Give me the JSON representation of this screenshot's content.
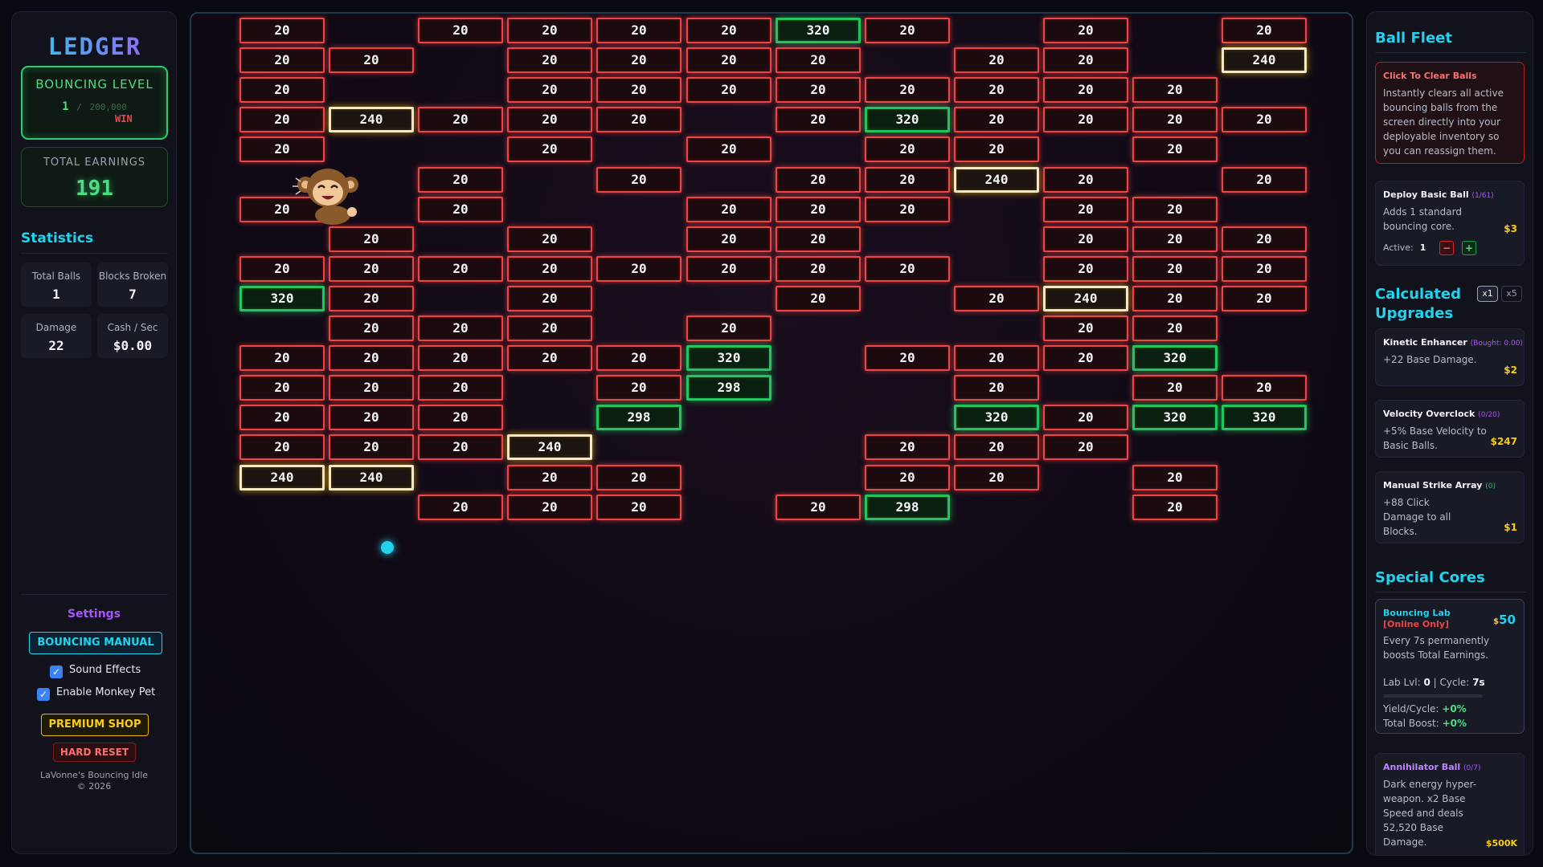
{
  "left": {
    "logo": "LEDGER",
    "level": {
      "title": "BOUNCING LEVEL",
      "current": "1",
      "sep": "/",
      "max": "200,000",
      "win": "WIN"
    },
    "earnings": {
      "title": "TOTAL EARNINGS",
      "value": "191"
    },
    "statistics": {
      "title": "Statistics",
      "total_balls_label": "Total Balls",
      "total_balls": "1",
      "blocks_broken_label": "Blocks Broken",
      "blocks_broken": "7",
      "damage_label": "Damage",
      "damage": "22",
      "cash_label": "Cash / Sec",
      "cash": "$0.00"
    },
    "settings": {
      "title": "Settings",
      "manual_label": "BOUNCING MANUAL",
      "sound_label": "Sound Effects",
      "sound_checked": true,
      "pet_label": "Enable Monkey Pet",
      "pet_checked": true,
      "premium_label": "PREMIUM SHOP",
      "reset_label": "HARD RESET",
      "credit_line1": "LaVonne's Bouncing Idle",
      "credit_line2": "© 2026"
    }
  },
  "board": {
    "bricks": [
      {
        "r": 0,
        "c": 0,
        "v": "20",
        "t": "red"
      },
      {
        "r": 0,
        "c": 2,
        "v": "20",
        "t": "red"
      },
      {
        "r": 0,
        "c": 3,
        "v": "20",
        "t": "red"
      },
      {
        "r": 0,
        "c": 4,
        "v": "20",
        "t": "red"
      },
      {
        "r": 0,
        "c": 5,
        "v": "20",
        "t": "red"
      },
      {
        "r": 0,
        "c": 6,
        "v": "320",
        "t": "green"
      },
      {
        "r": 0,
        "c": 7,
        "v": "20",
        "t": "red"
      },
      {
        "r": 0,
        "c": 9,
        "v": "20",
        "t": "red"
      },
      {
        "r": 0,
        "c": 11,
        "v": "20",
        "t": "red"
      },
      {
        "r": 1,
        "c": 0,
        "v": "20",
        "t": "red"
      },
      {
        "r": 1,
        "c": 1,
        "v": "20",
        "t": "red"
      },
      {
        "r": 1,
        "c": 3,
        "v": "20",
        "t": "red"
      },
      {
        "r": 1,
        "c": 4,
        "v": "20",
        "t": "red"
      },
      {
        "r": 1,
        "c": 5,
        "v": "20",
        "t": "red"
      },
      {
        "r": 1,
        "c": 6,
        "v": "20",
        "t": "red"
      },
      {
        "r": 1,
        "c": 8,
        "v": "20",
        "t": "red"
      },
      {
        "r": 1,
        "c": 9,
        "v": "20",
        "t": "red"
      },
      {
        "r": 1,
        "c": 11,
        "v": "240",
        "t": "gold"
      },
      {
        "r": 2,
        "c": 0,
        "v": "20",
        "t": "red"
      },
      {
        "r": 2,
        "c": 3,
        "v": "20",
        "t": "red"
      },
      {
        "r": 2,
        "c": 4,
        "v": "20",
        "t": "red"
      },
      {
        "r": 2,
        "c": 5,
        "v": "20",
        "t": "red"
      },
      {
        "r": 2,
        "c": 6,
        "v": "20",
        "t": "red"
      },
      {
        "r": 2,
        "c": 7,
        "v": "20",
        "t": "red"
      },
      {
        "r": 2,
        "c": 8,
        "v": "20",
        "t": "red"
      },
      {
        "r": 2,
        "c": 9,
        "v": "20",
        "t": "red"
      },
      {
        "r": 2,
        "c": 10,
        "v": "20",
        "t": "red"
      },
      {
        "r": 3,
        "c": 0,
        "v": "20",
        "t": "red"
      },
      {
        "r": 3,
        "c": 1,
        "v": "240",
        "t": "gold"
      },
      {
        "r": 3,
        "c": 2,
        "v": "20",
        "t": "red"
      },
      {
        "r": 3,
        "c": 3,
        "v": "20",
        "t": "red"
      },
      {
        "r": 3,
        "c": 4,
        "v": "20",
        "t": "red"
      },
      {
        "r": 3,
        "c": 6,
        "v": "20",
        "t": "red"
      },
      {
        "r": 3,
        "c": 7,
        "v": "320",
        "t": "green"
      },
      {
        "r": 3,
        "c": 8,
        "v": "20",
        "t": "red"
      },
      {
        "r": 3,
        "c": 9,
        "v": "20",
        "t": "red"
      },
      {
        "r": 3,
        "c": 10,
        "v": "20",
        "t": "red"
      },
      {
        "r": 3,
        "c": 11,
        "v": "20",
        "t": "red"
      },
      {
        "r": 4,
        "c": 0,
        "v": "20",
        "t": "red"
      },
      {
        "r": 4,
        "c": 3,
        "v": "20",
        "t": "red"
      },
      {
        "r": 4,
        "c": 5,
        "v": "20",
        "t": "red"
      },
      {
        "r": 4,
        "c": 7,
        "v": "20",
        "t": "red"
      },
      {
        "r": 4,
        "c": 8,
        "v": "20",
        "t": "red"
      },
      {
        "r": 4,
        "c": 10,
        "v": "20",
        "t": "red"
      },
      {
        "r": 5,
        "c": 2,
        "v": "20",
        "t": "red"
      },
      {
        "r": 5,
        "c": 4,
        "v": "20",
        "t": "red"
      },
      {
        "r": 5,
        "c": 6,
        "v": "20",
        "t": "red"
      },
      {
        "r": 5,
        "c": 7,
        "v": "20",
        "t": "red"
      },
      {
        "r": 5,
        "c": 8,
        "v": "240",
        "t": "gold"
      },
      {
        "r": 5,
        "c": 9,
        "v": "20",
        "t": "red"
      },
      {
        "r": 5,
        "c": 11,
        "v": "20",
        "t": "red"
      },
      {
        "r": 6,
        "c": 0,
        "v": "20",
        "t": "red"
      },
      {
        "r": 6,
        "c": 2,
        "v": "20",
        "t": "red"
      },
      {
        "r": 6,
        "c": 5,
        "v": "20",
        "t": "red"
      },
      {
        "r": 6,
        "c": 6,
        "v": "20",
        "t": "red"
      },
      {
        "r": 6,
        "c": 7,
        "v": "20",
        "t": "red"
      },
      {
        "r": 6,
        "c": 9,
        "v": "20",
        "t": "red"
      },
      {
        "r": 6,
        "c": 10,
        "v": "20",
        "t": "red"
      },
      {
        "r": 7,
        "c": 1,
        "v": "20",
        "t": "red"
      },
      {
        "r": 7,
        "c": 3,
        "v": "20",
        "t": "red"
      },
      {
        "r": 7,
        "c": 5,
        "v": "20",
        "t": "red"
      },
      {
        "r": 7,
        "c": 6,
        "v": "20",
        "t": "red"
      },
      {
        "r": 7,
        "c": 9,
        "v": "20",
        "t": "red"
      },
      {
        "r": 7,
        "c": 10,
        "v": "20",
        "t": "red"
      },
      {
        "r": 7,
        "c": 11,
        "v": "20",
        "t": "red"
      },
      {
        "r": 8,
        "c": 0,
        "v": "20",
        "t": "red"
      },
      {
        "r": 8,
        "c": 1,
        "v": "20",
        "t": "red"
      },
      {
        "r": 8,
        "c": 2,
        "v": "20",
        "t": "red"
      },
      {
        "r": 8,
        "c": 3,
        "v": "20",
        "t": "red"
      },
      {
        "r": 8,
        "c": 4,
        "v": "20",
        "t": "red"
      },
      {
        "r": 8,
        "c": 5,
        "v": "20",
        "t": "red"
      },
      {
        "r": 8,
        "c": 6,
        "v": "20",
        "t": "red"
      },
      {
        "r": 8,
        "c": 7,
        "v": "20",
        "t": "red"
      },
      {
        "r": 8,
        "c": 9,
        "v": "20",
        "t": "red"
      },
      {
        "r": 8,
        "c": 10,
        "v": "20",
        "t": "red"
      },
      {
        "r": 8,
        "c": 11,
        "v": "20",
        "t": "red"
      },
      {
        "r": 9,
        "c": 0,
        "v": "320",
        "t": "green"
      },
      {
        "r": 9,
        "c": 1,
        "v": "20",
        "t": "red"
      },
      {
        "r": 9,
        "c": 3,
        "v": "20",
        "t": "red"
      },
      {
        "r": 9,
        "c": 6,
        "v": "20",
        "t": "red"
      },
      {
        "r": 9,
        "c": 8,
        "v": "20",
        "t": "red"
      },
      {
        "r": 9,
        "c": 9,
        "v": "240",
        "t": "gold"
      },
      {
        "r": 9,
        "c": 10,
        "v": "20",
        "t": "red"
      },
      {
        "r": 9,
        "c": 11,
        "v": "20",
        "t": "red"
      },
      {
        "r": 10,
        "c": 1,
        "v": "20",
        "t": "red"
      },
      {
        "r": 10,
        "c": 2,
        "v": "20",
        "t": "red"
      },
      {
        "r": 10,
        "c": 3,
        "v": "20",
        "t": "red"
      },
      {
        "r": 10,
        "c": 5,
        "v": "20",
        "t": "red"
      },
      {
        "r": 10,
        "c": 9,
        "v": "20",
        "t": "red"
      },
      {
        "r": 10,
        "c": 10,
        "v": "20",
        "t": "red"
      },
      {
        "r": 11,
        "c": 0,
        "v": "20",
        "t": "red"
      },
      {
        "r": 11,
        "c": 1,
        "v": "20",
        "t": "red"
      },
      {
        "r": 11,
        "c": 2,
        "v": "20",
        "t": "red"
      },
      {
        "r": 11,
        "c": 3,
        "v": "20",
        "t": "red"
      },
      {
        "r": 11,
        "c": 4,
        "v": "20",
        "t": "red"
      },
      {
        "r": 11,
        "c": 5,
        "v": "320",
        "t": "green"
      },
      {
        "r": 11,
        "c": 7,
        "v": "20",
        "t": "red"
      },
      {
        "r": 11,
        "c": 8,
        "v": "20",
        "t": "red"
      },
      {
        "r": 11,
        "c": 9,
        "v": "20",
        "t": "red"
      },
      {
        "r": 11,
        "c": 10,
        "v": "320",
        "t": "green"
      },
      {
        "r": 12,
        "c": 0,
        "v": "20",
        "t": "red"
      },
      {
        "r": 12,
        "c": 1,
        "v": "20",
        "t": "red"
      },
      {
        "r": 12,
        "c": 2,
        "v": "20",
        "t": "red"
      },
      {
        "r": 12,
        "c": 4,
        "v": "20",
        "t": "red"
      },
      {
        "r": 12,
        "c": 5,
        "v": "298",
        "t": "green"
      },
      {
        "r": 12,
        "c": 8,
        "v": "20",
        "t": "red"
      },
      {
        "r": 12,
        "c": 10,
        "v": "20",
        "t": "red"
      },
      {
        "r": 12,
        "c": 11,
        "v": "20",
        "t": "red"
      },
      {
        "r": 13,
        "c": 0,
        "v": "20",
        "t": "red"
      },
      {
        "r": 13,
        "c": 1,
        "v": "20",
        "t": "red"
      },
      {
        "r": 13,
        "c": 2,
        "v": "20",
        "t": "red"
      },
      {
        "r": 13,
        "c": 4,
        "v": "298",
        "t": "green"
      },
      {
        "r": 13,
        "c": 8,
        "v": "320",
        "t": "green"
      },
      {
        "r": 13,
        "c": 9,
        "v": "20",
        "t": "red"
      },
      {
        "r": 13,
        "c": 10,
        "v": "320",
        "t": "green"
      },
      {
        "r": 13,
        "c": 11,
        "v": "320",
        "t": "green"
      },
      {
        "r": 14,
        "c": 0,
        "v": "20",
        "t": "red"
      },
      {
        "r": 14,
        "c": 1,
        "v": "20",
        "t": "red"
      },
      {
        "r": 14,
        "c": 2,
        "v": "20",
        "t": "red"
      },
      {
        "r": 14,
        "c": 3,
        "v": "240",
        "t": "gold"
      },
      {
        "r": 14,
        "c": 7,
        "v": "20",
        "t": "red"
      },
      {
        "r": 14,
        "c": 8,
        "v": "20",
        "t": "red"
      },
      {
        "r": 14,
        "c": 9,
        "v": "20",
        "t": "red"
      },
      {
        "r": 15,
        "c": 0,
        "v": "240",
        "t": "gold"
      },
      {
        "r": 15,
        "c": 1,
        "v": "240",
        "t": "gold"
      },
      {
        "r": 15,
        "c": 3,
        "v": "20",
        "t": "red"
      },
      {
        "r": 15,
        "c": 4,
        "v": "20",
        "t": "red"
      },
      {
        "r": 15,
        "c": 7,
        "v": "20",
        "t": "red"
      },
      {
        "r": 15,
        "c": 8,
        "v": "20",
        "t": "red"
      },
      {
        "r": 15,
        "c": 10,
        "v": "20",
        "t": "red"
      },
      {
        "r": 16,
        "c": 2,
        "v": "20",
        "t": "red"
      },
      {
        "r": 16,
        "c": 3,
        "v": "20",
        "t": "red"
      },
      {
        "r": 16,
        "c": 4,
        "v": "20",
        "t": "red"
      },
      {
        "r": 16,
        "c": 6,
        "v": "20",
        "t": "red"
      },
      {
        "r": 16,
        "c": 7,
        "v": "298",
        "t": "green"
      },
      {
        "r": 16,
        "c": 10,
        "v": "20",
        "t": "red"
      }
    ],
    "colors": {
      "red": "#ef4444",
      "green": "#22c55e",
      "gold": "#eab308",
      "ball": "#22d3ee"
    }
  },
  "right": {
    "fleet_title": "Ball Fleet",
    "clear": {
      "title": "Click To Clear Balls",
      "desc": "Instantly clears all active bouncing balls from the screen directly into your deployable inventory so you can reassign them."
    },
    "deploy": {
      "title": "Deploy Basic Ball",
      "count": "(1/61)",
      "desc": "Adds 1 standard bouncing core.",
      "price": "$3",
      "active_label": "Active:",
      "active_value": "1",
      "minus": "−",
      "plus": "+"
    },
    "upgrades_title": "Calculated Upgrades",
    "mult_x1": "x1",
    "mult_x5": "x5",
    "kinetic": {
      "title": "Kinetic Enhancer",
      "count": "(Bought: 0.00)",
      "desc": "+22 Base Damage.",
      "price": "$2"
    },
    "velocity": {
      "title": "Velocity Overclock",
      "count": "(0/20)",
      "desc": "+5% Base Velocity to Basic Balls.",
      "price": "$247"
    },
    "manual": {
      "title": "Manual Strike Array",
      "count": "(0)",
      "desc": "+88 Click Damage to all Blocks.",
      "price": "$1"
    },
    "special_title": "Special Cores",
    "lab": {
      "title": "Bouncing Lab",
      "online": "[Online Only]",
      "price_symbol": "$",
      "price": "50",
      "desc": "Every 7s permanently boosts Total Earnings.",
      "lvl_label": "Lab Lvl:",
      "lvl": "0",
      "cycle_label": "| Cycle:",
      "cycle": "7s",
      "progress": 0,
      "yield_label": "Yield/Cycle:",
      "yield": "+0%",
      "boost_label": "Total Boost:",
      "boost": "+0%"
    },
    "annihilator": {
      "title": "Annihilator Ball",
      "count": "(0/7)",
      "desc": "Dark energy hyper-weapon. x2 Base Speed and deals 52,520 Base Damage.",
      "price": "$500K"
    }
  }
}
